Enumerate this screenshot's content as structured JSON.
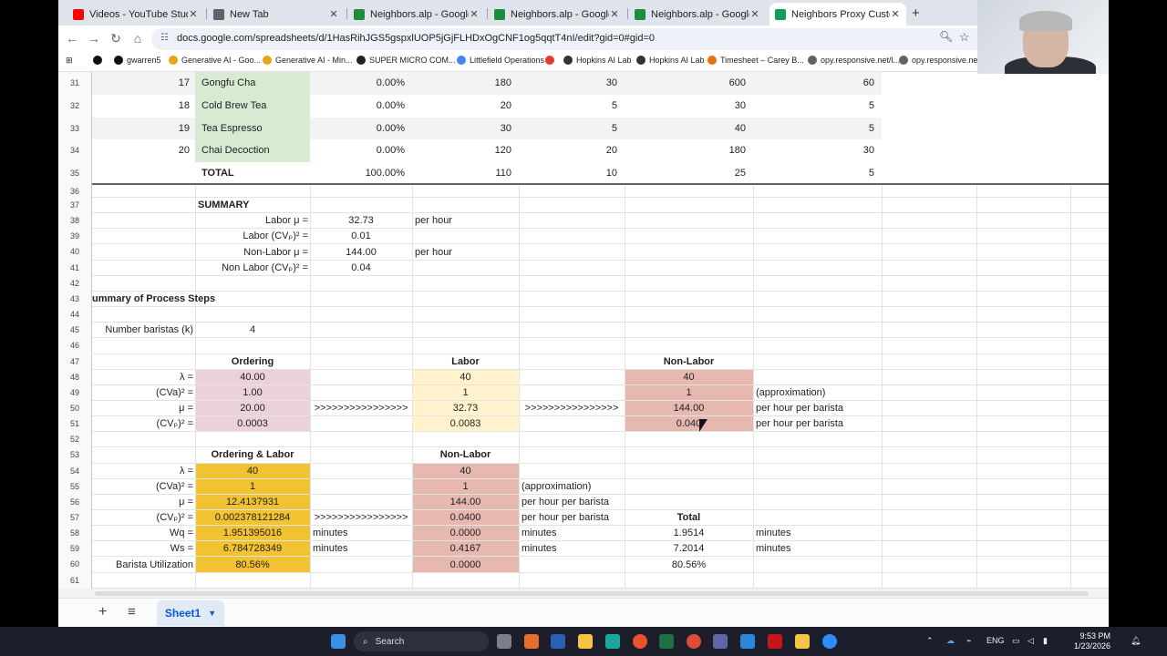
{
  "browser": {
    "tabs": [
      {
        "title": "Videos - YouTube Studio",
        "fav_color": "#ff0000"
      },
      {
        "title": "New Tab",
        "fav_color": "#5f6368"
      },
      {
        "title": "Neighbors.alp - Google Drive",
        "fav_color": "#1e8e3e"
      },
      {
        "title": "Neighbors.alp - Google Drive",
        "fav_color": "#1e8e3e"
      },
      {
        "title": "Neighbors.alp - Google Drive",
        "fav_color": "#1e8e3e"
      },
      {
        "title": "Neighbors Proxy Customer A",
        "fav_color": "#0f9d58",
        "active": true
      }
    ],
    "new_tab_label": "+",
    "url": "docs.google.com/spreadsheets/d/1HasRihJGS5gspxlUOP5jGjFLHDxOgCNF1og5qqtT4nI/edit?gid=0#gid=0",
    "bookmarks": [
      "gwarren5",
      "Generative AI - Goo...",
      "Generative AI - Min...",
      "SUPER MICRO COM...",
      "Littlefield Operations",
      "",
      "Hopkins AI Lab",
      "Hopkins AI Lab",
      "Timesheet – Carey B...",
      "opy.responsive.net/l...",
      "opy.responsive.net/l"
    ]
  },
  "sheet": {
    "rows": [
      {
        "num": "31",
        "cells": [
          {
            "col": "idx",
            "text": "17"
          },
          {
            "col": "name",
            "text": "Gongfu Cha"
          },
          {
            "col": "pct",
            "text": "0.00%"
          },
          {
            "col": "d",
            "text": "180"
          },
          {
            "col": "e",
            "text": "30"
          },
          {
            "col": "f",
            "text": "600"
          },
          {
            "col": "g",
            "text": "60"
          }
        ]
      },
      {
        "num": "32",
        "cells": [
          {
            "col": "idx",
            "text": "18"
          },
          {
            "col": "name",
            "text": "Cold Brew Tea"
          },
          {
            "col": "pct",
            "text": "0.00%"
          },
          {
            "col": "d",
            "text": "20"
          },
          {
            "col": "e",
            "text": "5"
          },
          {
            "col": "f",
            "text": "30"
          },
          {
            "col": "g",
            "text": "5"
          }
        ]
      },
      {
        "num": "33",
        "cells": [
          {
            "col": "idx",
            "text": "19"
          },
          {
            "col": "name",
            "text": "Tea Espresso"
          },
          {
            "col": "pct",
            "text": "0.00%"
          },
          {
            "col": "d",
            "text": "30"
          },
          {
            "col": "e",
            "text": "5"
          },
          {
            "col": "f",
            "text": "40"
          },
          {
            "col": "g",
            "text": "5"
          }
        ]
      },
      {
        "num": "34",
        "cells": [
          {
            "col": "idx",
            "text": "20"
          },
          {
            "col": "name",
            "text": "Chai Decoction"
          },
          {
            "col": "pct",
            "text": "0.00%"
          },
          {
            "col": "d",
            "text": "120"
          },
          {
            "col": "e",
            "text": "20"
          },
          {
            "col": "f",
            "text": "180"
          },
          {
            "col": "g",
            "text": "30"
          }
        ]
      },
      {
        "num": "35",
        "cells": [
          {
            "col": "name",
            "text": "TOTAL",
            "bold": true
          },
          {
            "col": "pct",
            "text": "100.00%"
          },
          {
            "col": "d",
            "text": "110"
          },
          {
            "col": "e",
            "text": "10"
          },
          {
            "col": "f",
            "text": "25"
          },
          {
            "col": "g",
            "text": "5"
          }
        ]
      },
      {
        "num": "36",
        "cells": []
      },
      {
        "num": "37",
        "cells": [
          {
            "col": "name_l",
            "text": "SUMMARY",
            "bold": true
          }
        ]
      },
      {
        "num": "38",
        "cells": [
          {
            "col": "name_r",
            "text": "Labor  μ ="
          },
          {
            "col": "c_c",
            "text": "32.73"
          },
          {
            "col": "d_l",
            "text": "per hour"
          }
        ]
      },
      {
        "num": "39",
        "cells": [
          {
            "col": "name_r",
            "text": "Labor (CVₚ)² ="
          },
          {
            "col": "c_c",
            "text": "0.01"
          }
        ]
      },
      {
        "num": "40",
        "cells": [
          {
            "col": "name_r",
            "text": "Non-Labor  μ ="
          },
          {
            "col": "c_c",
            "text": "144.00"
          },
          {
            "col": "d_l",
            "text": "per hour"
          }
        ]
      },
      {
        "num": "41",
        "cells": [
          {
            "col": "name_r",
            "text": "Non Labor (CVₚ)² ="
          },
          {
            "col": "c_c",
            "text": "0.04"
          }
        ]
      },
      {
        "num": "42",
        "cells": []
      },
      {
        "num": "43",
        "cells": [
          {
            "col": "a_l",
            "text": "ummary of Process Steps",
            "bold": true
          }
        ]
      },
      {
        "num": "44",
        "cells": []
      },
      {
        "num": "45",
        "cells": [
          {
            "col": "a_r",
            "text": "Number baristas (k)"
          },
          {
            "col": "b_c",
            "text": "4"
          }
        ]
      },
      {
        "num": "46",
        "cells": []
      },
      {
        "num": "47",
        "cells": [
          {
            "col": "b_c",
            "text": "Ordering",
            "bold": true
          },
          {
            "col": "d_c",
            "text": "Labor",
            "bold": true
          },
          {
            "col": "f_c",
            "text": "Non-Labor",
            "bold": true
          }
        ]
      },
      {
        "num": "48",
        "cells": [
          {
            "col": "a_r",
            "text": "λ ="
          },
          {
            "col": "b_c",
            "text": "40.00"
          },
          {
            "col": "d_c",
            "text": "40"
          },
          {
            "col": "f_c",
            "text": "40"
          }
        ]
      },
      {
        "num": "49",
        "cells": [
          {
            "col": "a_r",
            "text": "(CVa)² ="
          },
          {
            "col": "b_c",
            "text": "1.00"
          },
          {
            "col": "d_c",
            "text": "1"
          },
          {
            "col": "f_c",
            "text": "1"
          },
          {
            "col": "g_l",
            "text": "(approximation)"
          }
        ]
      },
      {
        "num": "50",
        "cells": [
          {
            "col": "a_r",
            "text": "μ ="
          },
          {
            "col": "b_c",
            "text": "20.00"
          },
          {
            "col": "c_c",
            "text": ">>>>>>>>>>>>>>>>"
          },
          {
            "col": "d_c",
            "text": "32.73"
          },
          {
            "col": "e_c",
            "text": ">>>>>>>>>>>>>>>>"
          },
          {
            "col": "f_c",
            "text": "144.00"
          },
          {
            "col": "g_l",
            "text": "per hour per barista"
          }
        ]
      },
      {
        "num": "51",
        "cells": [
          {
            "col": "a_r",
            "text": "(CVₚ)² ="
          },
          {
            "col": "b_c",
            "text": "0.0003"
          },
          {
            "col": "d_c",
            "text": "0.0083"
          },
          {
            "col": "f_c",
            "text": "0.040"
          },
          {
            "col": "g_l",
            "text": "per hour per barista"
          }
        ]
      },
      {
        "num": "52",
        "cells": []
      },
      {
        "num": "53",
        "cells": [
          {
            "col": "b_c",
            "text": "Ordering & Labor",
            "bold": true
          },
          {
            "col": "d_c",
            "text": "Non-Labor",
            "bold": true
          }
        ]
      },
      {
        "num": "54",
        "cells": [
          {
            "col": "a_r",
            "text": "λ ="
          },
          {
            "col": "b_c",
            "text": "40"
          },
          {
            "col": "d_c",
            "text": "40"
          }
        ]
      },
      {
        "num": "55",
        "cells": [
          {
            "col": "a_r",
            "text": "(CVa)² ="
          },
          {
            "col": "b_c",
            "text": "1"
          },
          {
            "col": "d_c",
            "text": "1"
          },
          {
            "col": "e_l",
            "text": "(approximation)"
          }
        ]
      },
      {
        "num": "56",
        "cells": [
          {
            "col": "a_r",
            "text": "μ ="
          },
          {
            "col": "b_c",
            "text": "12.4137931"
          },
          {
            "col": "d_c",
            "text": "144.00"
          },
          {
            "col": "e_l",
            "text": "per hour per barista"
          }
        ]
      },
      {
        "num": "57",
        "cells": [
          {
            "col": "a_r",
            "text": "(CVₚ)² ="
          },
          {
            "col": "b_c",
            "text": "0.002378121284"
          },
          {
            "col": "c_c",
            "text": ">>>>>>>>>>>>>>>>"
          },
          {
            "col": "d_c",
            "text": "0.0400"
          },
          {
            "col": "e_l",
            "text": "per hour per barista"
          },
          {
            "col": "f_c",
            "text": "Total",
            "bold": true
          }
        ]
      },
      {
        "num": "58",
        "cells": [
          {
            "col": "a_r",
            "text": "Wq ="
          },
          {
            "col": "b_c",
            "text": "1.951395016"
          },
          {
            "col": "c_l",
            "text": "minutes"
          },
          {
            "col": "d_c",
            "text": "0.0000"
          },
          {
            "col": "e_l",
            "text": "minutes"
          },
          {
            "col": "f_c",
            "text": "1.9514"
          },
          {
            "col": "g_l",
            "text": "minutes"
          }
        ]
      },
      {
        "num": "59",
        "cells": [
          {
            "col": "a_r",
            "text": "Ws ="
          },
          {
            "col": "b_c",
            "text": "6.784728349"
          },
          {
            "col": "c_l",
            "text": "minutes"
          },
          {
            "col": "d_c",
            "text": "0.4167"
          },
          {
            "col": "e_l",
            "text": "minutes"
          },
          {
            "col": "f_c",
            "text": "7.2014"
          },
          {
            "col": "g_l",
            "text": "minutes"
          }
        ]
      },
      {
        "num": "60",
        "cells": [
          {
            "col": "a_r",
            "text": "Barista Utilization"
          },
          {
            "col": "b_c",
            "text": "80.56%"
          },
          {
            "col": "d_c",
            "text": "0.0000"
          },
          {
            "col": "f_c",
            "text": "80.56%"
          }
        ]
      },
      {
        "num": "61",
        "cells": []
      }
    ],
    "sheet_tab": "Sheet1",
    "fills": {
      "green": "#d9ead3",
      "pink": "#ead1dc",
      "yellow": "#fff2cc",
      "salmon": "#e6b8af",
      "orange": "#f1c232"
    }
  },
  "taskbar": {
    "search_placeholder": "Search",
    "lang": "ENG",
    "time": "9:53 PM",
    "date": "1/23/2026"
  }
}
